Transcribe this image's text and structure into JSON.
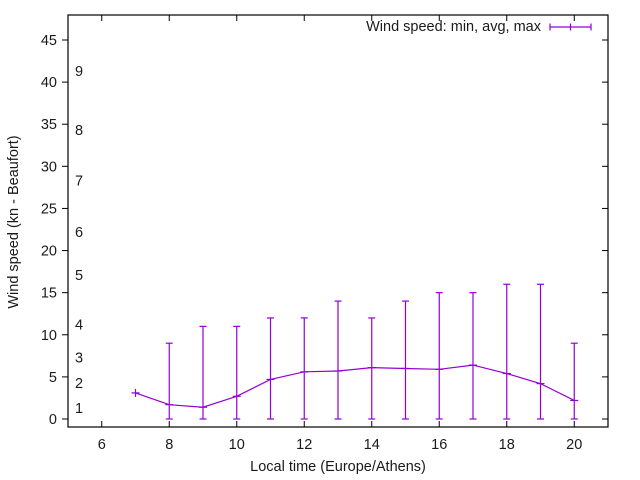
{
  "chart_data": {
    "type": "line",
    "title": "",
    "xlabel": "Local time (Europe/Athens)",
    "ylabel": "Wind speed (kn - Beaufort)",
    "xlim": [
      5,
      21
    ],
    "ylim": [
      -1,
      48
    ],
    "x_ticks": [
      6,
      8,
      10,
      12,
      14,
      16,
      18,
      20
    ],
    "y_ticks": [
      0,
      5,
      10,
      15,
      20,
      25,
      30,
      35,
      40,
      45
    ],
    "grid": false,
    "legend_position": "top-right",
    "series": [
      {
        "name": "Wind speed: min, avg, max",
        "style": "yerrorlines",
        "color": "#9400d3",
        "x": [
          7,
          8,
          9,
          10,
          11,
          12,
          13,
          14,
          15,
          16,
          17,
          18,
          19,
          20
        ],
        "min": [
          3.1,
          0,
          0,
          0,
          0,
          0,
          0,
          0,
          0,
          0,
          0,
          0,
          0,
          0
        ],
        "avg": [
          3.1,
          1.7,
          1.4,
          2.7,
          4.7,
          5.6,
          5.7,
          6.1,
          6.0,
          5.9,
          6.4,
          5.4,
          4.2,
          2.2
        ],
        "max": [
          3.1,
          9,
          11,
          11,
          12,
          12,
          14,
          12,
          14,
          15,
          15,
          16,
          16,
          9
        ]
      }
    ],
    "annotations": [
      {
        "text": "1",
        "y": 1.3
      },
      {
        "text": "2",
        "y": 4.3
      },
      {
        "text": "3",
        "y": 7.3
      },
      {
        "text": "4",
        "y": 11.2
      },
      {
        "text": "5",
        "y": 17.1
      },
      {
        "text": "6",
        "y": 22.2
      },
      {
        "text": "7",
        "y": 28.3
      },
      {
        "text": "8",
        "y": 34.3
      },
      {
        "text": "9",
        "y": 41.3
      }
    ]
  }
}
